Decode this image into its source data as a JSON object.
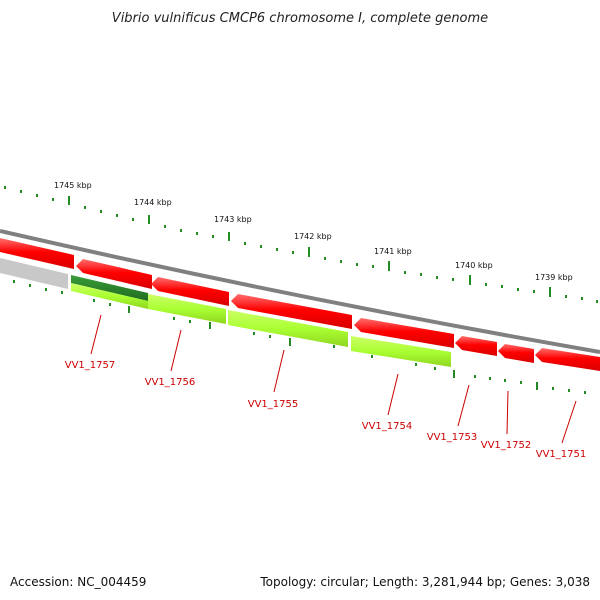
{
  "title": "Vibrio vulnificus CMCP6 chromosome I, complete genome",
  "footer": {
    "accession": "Accession: NC_004459",
    "summary": "Topology: circular; Length: 3,281,944 bp; Genes: 3,038"
  },
  "ruler_labels": [
    "1745 kbp",
    "1744 kbp",
    "1743 kbp",
    "1742 kbp",
    "1741 kbp",
    "1740 kbp",
    "1739 kbp"
  ],
  "gene_labels": [
    "VV1_1757",
    "VV1_1756",
    "VV1_1755",
    "VV1_1754",
    "VV1_1753",
    "VV1_1752",
    "VV1_1751"
  ],
  "colors": {
    "backbone": "#808080",
    "reverse_genes": "#ff0000",
    "forward_gene_dark": "#2e8b2e",
    "forward_genes": "#aaff33",
    "inactive_gene": "#c8c8c8",
    "ticks": "#228b22",
    "gene_labels": "#cc0000"
  }
}
